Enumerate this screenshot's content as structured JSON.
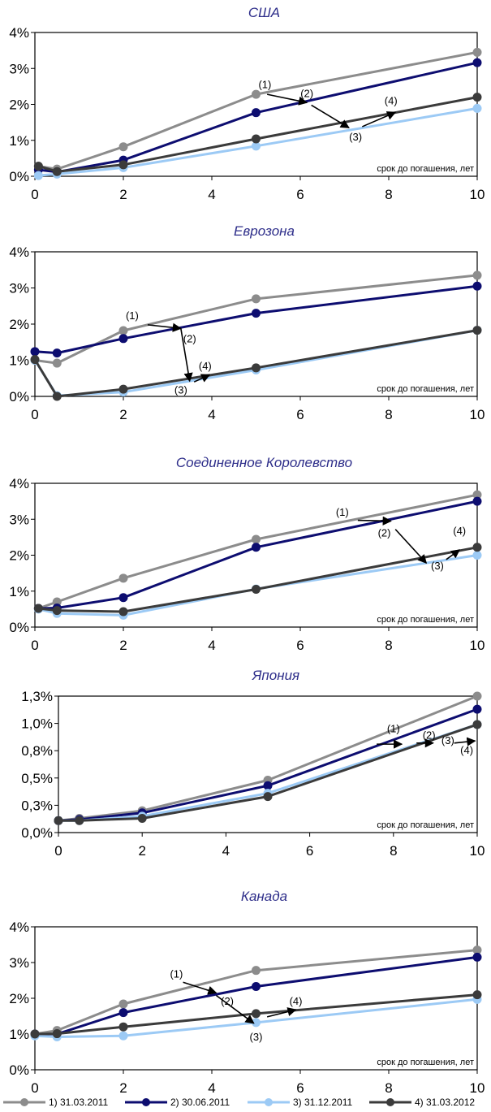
{
  "chart_data": [
    {
      "type": "line",
      "title": "США",
      "note": "срок до погашения,  лет",
      "xlim": [
        0,
        10
      ],
      "ylim": [
        0,
        4
      ],
      "xticks": [
        0,
        2,
        4,
        6,
        8,
        10
      ],
      "yticks": [
        0,
        1,
        2,
        3,
        4
      ],
      "yticklabels": [
        "0%",
        "1%",
        "2%",
        "3%",
        "4%"
      ],
      "x": [
        0.08,
        0.5,
        2,
        5,
        10
      ],
      "series": [
        {
          "name": "1) 31.03.2011",
          "values": [
            0.28,
            0.2,
            0.82,
            2.28,
            3.45
          ]
        },
        {
          "name": "2) 30.06.2011",
          "values": [
            0.18,
            0.12,
            0.45,
            1.77,
            3.16
          ]
        },
        {
          "name": "3) 31.12.2011",
          "values": [
            0.02,
            0.06,
            0.24,
            0.84,
            1.89
          ]
        },
        {
          "name": "4) 31.03.2012",
          "values": [
            0.28,
            0.13,
            0.32,
            1.04,
            2.2
          ]
        }
      ],
      "annotations": [
        {
          "text": "(1)",
          "x": 5.2,
          "y": 2.45
        },
        {
          "text": "(2)",
          "x": 6.15,
          "y": 2.2
        },
        {
          "text": "(3)",
          "x": 7.25,
          "y": 1.0
        },
        {
          "text": "(4)",
          "x": 8.05,
          "y": 2.0
        }
      ],
      "arrows": [
        {
          "x1": 5.25,
          "y1": 2.28,
          "x2": 6.15,
          "y2": 2.05
        },
        {
          "x1": 6.25,
          "y1": 1.98,
          "x2": 7.1,
          "y2": 1.35
        },
        {
          "x1": 7.4,
          "y1": 1.38,
          "x2": 8.15,
          "y2": 1.78
        }
      ]
    },
    {
      "type": "line",
      "title": "Еврозона",
      "note": "срок до погашения,  лет",
      "xlim": [
        0,
        10
      ],
      "ylim": [
        0,
        4
      ],
      "xticks": [
        0,
        2,
        4,
        6,
        8,
        10
      ],
      "yticks": [
        0,
        1,
        2,
        3,
        4
      ],
      "yticklabels": [
        "0%",
        "1%",
        "2%",
        "3%",
        "4%"
      ],
      "x": [
        0,
        0.5,
        2,
        5,
        10
      ],
      "series": [
        {
          "name": "1) 31.03.2011",
          "values": [
            1.0,
            0.92,
            1.82,
            2.7,
            3.35
          ]
        },
        {
          "name": "2) 30.06.2011",
          "values": [
            1.24,
            1.2,
            1.6,
            2.3,
            3.05
          ]
        },
        {
          "name": "3) 31.12.2011",
          "values": [
            1.0,
            0.02,
            0.12,
            0.73,
            1.83
          ]
        },
        {
          "name": "4) 31.03.2012",
          "values": [
            1.02,
            0.0,
            0.2,
            0.79,
            1.83
          ]
        }
      ],
      "annotations": [
        {
          "text": "(1)",
          "x": 2.2,
          "y": 2.14
        },
        {
          "text": "(2)",
          "x": 3.5,
          "y": 1.5
        },
        {
          "text": "(3)",
          "x": 3.3,
          "y": 0.08
        },
        {
          "text": "(4)",
          "x": 3.85,
          "y": 0.74
        }
      ],
      "arrows": [
        {
          "x1": 2.55,
          "y1": 1.98,
          "x2": 3.3,
          "y2": 1.88
        },
        {
          "x1": 3.3,
          "y1": 1.88,
          "x2": 3.5,
          "y2": 0.42
        },
        {
          "x1": 3.6,
          "y1": 0.4,
          "x2": 3.95,
          "y2": 0.6
        }
      ]
    },
    {
      "type": "line",
      "title": "Соединенное Королевство",
      "note": "срок до погашения,  лет",
      "xlim": [
        0,
        10
      ],
      "ylim": [
        0,
        4
      ],
      "xticks": [
        0,
        2,
        4,
        6,
        8,
        10
      ],
      "yticks": [
        0,
        1,
        2,
        3,
        4
      ],
      "yticklabels": [
        "0%",
        "1%",
        "2%",
        "3%",
        "4%"
      ],
      "x": [
        0.08,
        0.5,
        2,
        5,
        10
      ],
      "series": [
        {
          "name": "1) 31.03.2011",
          "values": [
            0.52,
            0.7,
            1.36,
            2.44,
            3.68
          ]
        },
        {
          "name": "2) 30.06.2011",
          "values": [
            0.52,
            0.53,
            0.82,
            2.22,
            3.5
          ]
        },
        {
          "name": "3) 31.12.2011",
          "values": [
            0.5,
            0.38,
            0.33,
            1.06,
            2.0
          ]
        },
        {
          "name": "4) 31.03.2012",
          "values": [
            0.52,
            0.46,
            0.43,
            1.05,
            2.22
          ]
        }
      ],
      "annotations": [
        {
          "text": "(1)",
          "x": 6.95,
          "y": 3.1
        },
        {
          "text": "(2)",
          "x": 7.9,
          "y": 2.52
        },
        {
          "text": "(3)",
          "x": 9.1,
          "y": 1.6
        },
        {
          "text": "(4)",
          "x": 9.6,
          "y": 2.58
        }
      ],
      "arrows": [
        {
          "x1": 7.3,
          "y1": 2.97,
          "x2": 8.05,
          "y2": 2.95
        },
        {
          "x1": 8.15,
          "y1": 2.72,
          "x2": 8.85,
          "y2": 1.78
        },
        {
          "x1": 9.3,
          "y1": 1.88,
          "x2": 9.6,
          "y2": 2.15
        }
      ]
    },
    {
      "type": "line",
      "title": "Япония",
      "note": "срок до погашения,  лет",
      "xlim": [
        0,
        10
      ],
      "ylim": [
        0,
        1.25
      ],
      "xticks": [
        0,
        2,
        4,
        6,
        8,
        10
      ],
      "yticks": [
        0,
        0.25,
        0.5,
        0.75,
        1.0,
        1.25
      ],
      "yticklabels": [
        "0,0%",
        "0,3%",
        "0,5%",
        "0,8%",
        "1,0%",
        "1,3%"
      ],
      "x": [
        0,
        0.5,
        2,
        5,
        10
      ],
      "series": [
        {
          "name": "1) 31.03.2011",
          "values": [
            0.11,
            0.13,
            0.2,
            0.48,
            1.25
          ]
        },
        {
          "name": "2) 30.06.2011",
          "values": [
            0.11,
            0.12,
            0.18,
            0.43,
            1.13
          ]
        },
        {
          "name": "3) 31.12.2011",
          "values": [
            0.11,
            0.11,
            0.15,
            0.36,
            0.99
          ]
        },
        {
          "name": "4) 31.03.2012",
          "values": [
            0.11,
            0.11,
            0.13,
            0.33,
            0.99
          ]
        }
      ],
      "annotations": [
        {
          "text": "(1)",
          "x": 8.0,
          "y": 0.92
        },
        {
          "text": "(2)",
          "x": 8.85,
          "y": 0.86
        },
        {
          "text": "(3)",
          "x": 9.3,
          "y": 0.81
        },
        {
          "text": "(4)",
          "x": 9.75,
          "y": 0.72
        }
      ],
      "arrows": [
        {
          "x1": 7.6,
          "y1": 0.81,
          "x2": 8.2,
          "y2": 0.81
        },
        {
          "x1": 8.55,
          "y1": 0.82,
          "x2": 8.95,
          "y2": 0.82
        },
        {
          "x1": 9.45,
          "y1": 0.82,
          "x2": 9.95,
          "y2": 0.84
        }
      ]
    },
    {
      "type": "line",
      "title": "Канада",
      "note": "срок до погашения,  лет",
      "xlim": [
        0,
        10
      ],
      "ylim": [
        0,
        4
      ],
      "xticks": [
        0,
        2,
        4,
        6,
        8,
        10
      ],
      "yticks": [
        0,
        1,
        2,
        3,
        4
      ],
      "yticklabels": [
        "0%",
        "1%",
        "2%",
        "3%",
        "4%"
      ],
      "x": [
        0,
        0.5,
        2,
        5,
        10
      ],
      "series": [
        {
          "name": "1) 31.03.2011",
          "values": [
            1.0,
            1.1,
            1.84,
            2.78,
            3.35
          ]
        },
        {
          "name": "2) 30.06.2011",
          "values": [
            1.0,
            1.0,
            1.6,
            2.33,
            3.15
          ]
        },
        {
          "name": "3) 31.12.2011",
          "values": [
            0.95,
            0.92,
            0.95,
            1.32,
            1.97
          ]
        },
        {
          "name": "4) 31.03.2012",
          "values": [
            1.0,
            1.01,
            1.2,
            1.57,
            2.1
          ]
        }
      ],
      "annotations": [
        {
          "text": "(1)",
          "x": 3.2,
          "y": 2.58
        },
        {
          "text": "(2)",
          "x": 4.35,
          "y": 1.82
        },
        {
          "text": "(3)",
          "x": 5.0,
          "y": 0.82
        },
        {
          "text": "(4)",
          "x": 5.9,
          "y": 1.82
        }
      ],
      "arrows": [
        {
          "x1": 3.35,
          "y1": 2.45,
          "x2": 4.1,
          "y2": 2.15
        },
        {
          "x1": 4.1,
          "y1": 2.08,
          "x2": 4.95,
          "y2": 1.3
        },
        {
          "x1": 5.25,
          "y1": 1.48,
          "x2": 5.9,
          "y2": 1.68
        }
      ]
    }
  ],
  "legend": {
    "items": [
      {
        "label": "1) 31.03.2011",
        "color": "#8c8c8c"
      },
      {
        "label": "2) 30.06.2011",
        "color": "#0d0d70"
      },
      {
        "label": "3) 31.12.2011",
        "color": "#9ccaf5"
      },
      {
        "label": "4) 31.03.2012",
        "color": "#3b3b3b"
      }
    ]
  },
  "colors": {
    "series": [
      "#8c8c8c",
      "#0d0d70",
      "#9ccaf5",
      "#3b3b3b"
    ],
    "title": "#2e2e8a",
    "axes": "#000000"
  }
}
